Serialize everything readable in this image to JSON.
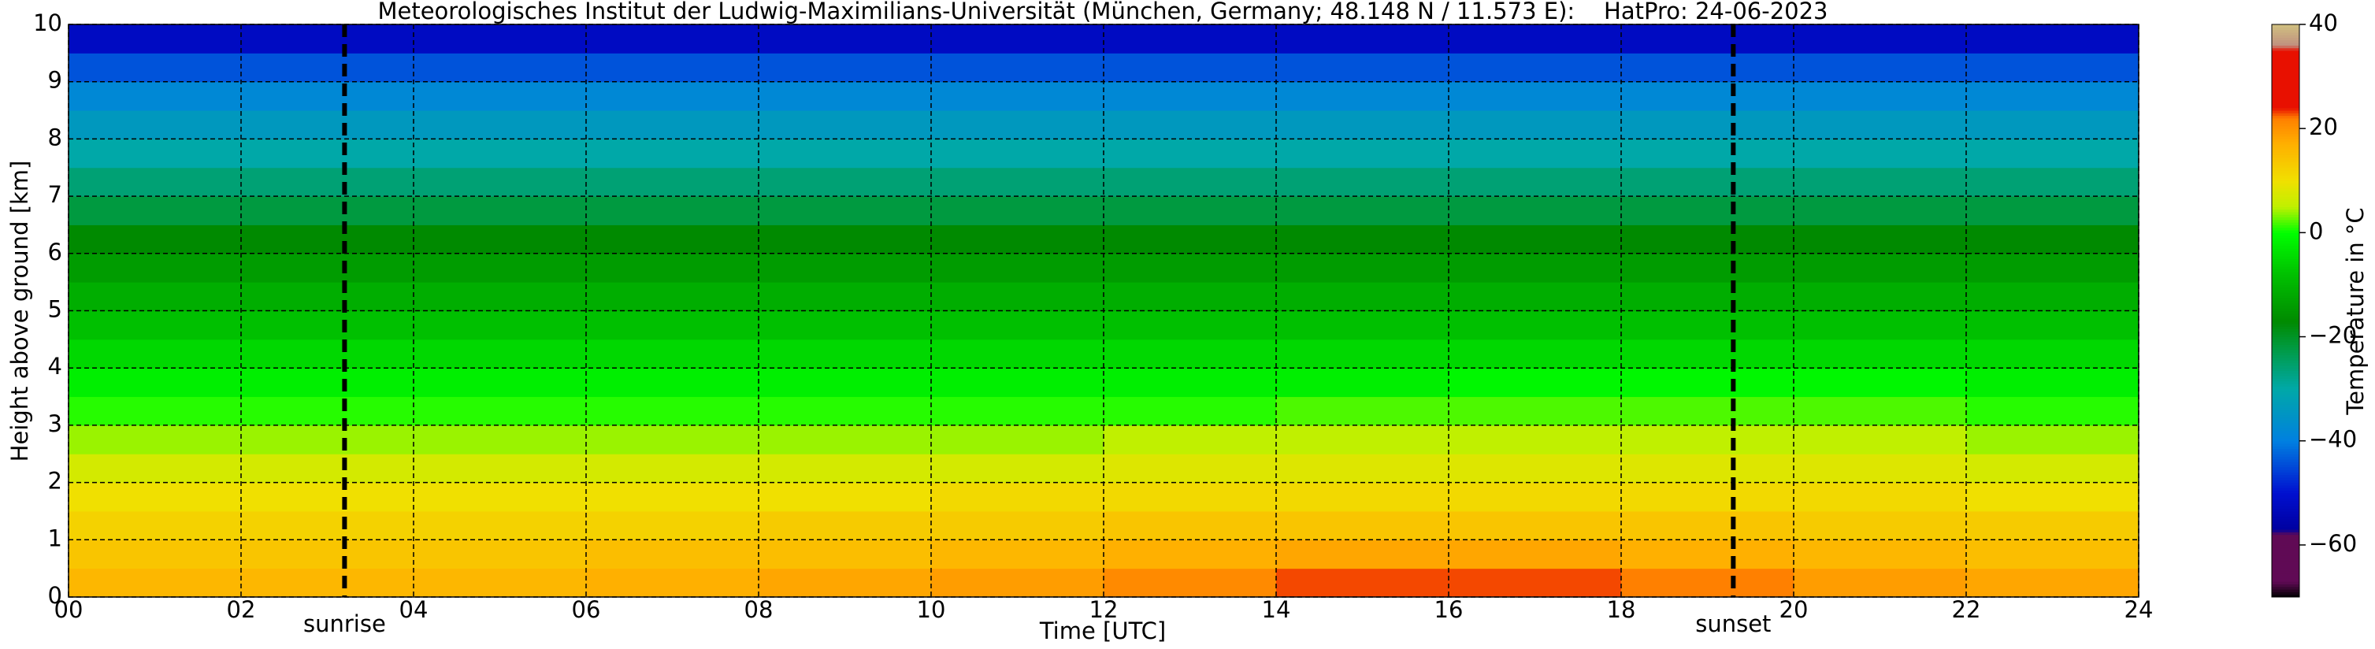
{
  "chart_data": {
    "type": "heatmap",
    "title": "Meteorologisches Institut der Ludwig-Maximilians-Universität (München, Germany; 48.148 N / 11.573 E):    HatPro: 24-06-2023",
    "x_label": "Time [UTC]",
    "y_label": "Height above ground [km]",
    "x": [
      0,
      2,
      4,
      6,
      8,
      10,
      12,
      14,
      16,
      18,
      20,
      22,
      24
    ],
    "y": [
      0,
      0.5,
      1,
      1.5,
      2,
      2.5,
      3,
      3.5,
      4,
      4.5,
      5,
      5.5,
      6,
      6.5,
      7,
      7.5,
      8,
      8.5,
      9,
      9.5,
      10
    ],
    "values": [
      [
        16,
        16,
        16,
        17,
        18,
        19,
        21,
        23,
        23,
        22,
        19,
        18
      ],
      [
        14,
        14,
        14,
        15,
        15,
        16,
        17,
        18,
        18,
        17,
        16,
        15
      ],
      [
        12,
        12,
        12,
        12,
        13,
        13,
        14,
        14,
        14,
        14,
        13,
        13
      ],
      [
        10,
        10,
        10,
        10,
        10,
        11,
        11,
        11,
        11,
        11,
        11,
        10
      ],
      [
        7,
        7,
        7,
        7,
        7,
        7,
        8,
        8,
        8,
        8,
        8,
        7
      ],
      [
        4,
        4,
        4,
        4,
        4,
        4,
        5,
        5,
        5,
        5,
        5,
        4
      ],
      [
        1,
        1,
        1,
        1,
        1,
        1,
        1,
        2,
        2,
        2,
        2,
        1
      ],
      [
        -2,
        -2,
        -2,
        -2,
        -2,
        -2,
        -2,
        -2,
        -1,
        -1,
        -1,
        -2
      ],
      [
        -5,
        -5,
        -5,
        -5,
        -5,
        -5,
        -5,
        -5,
        -5,
        -5,
        -5,
        -5
      ],
      [
        -8,
        -8,
        -8,
        -8,
        -8,
        -8,
        -8,
        -8,
        -8,
        -8,
        -8,
        -8
      ],
      [
        -11,
        -11,
        -11,
        -11,
        -11,
        -11,
        -11,
        -11,
        -11,
        -11,
        -11,
        -11
      ],
      [
        -14,
        -14,
        -14,
        -14,
        -14,
        -14,
        -14,
        -14,
        -14,
        -14,
        -14,
        -14
      ],
      [
        -17,
        -17,
        -17,
        -17,
        -17,
        -17,
        -17,
        -17,
        -17,
        -17,
        -17,
        -17
      ],
      [
        -22,
        -22,
        -22,
        -22,
        -22,
        -22,
        -22,
        -22,
        -22,
        -22,
        -22,
        -22
      ],
      [
        -26,
        -26,
        -26,
        -26,
        -26,
        -26,
        -26,
        -26,
        -26,
        -26,
        -26,
        -26
      ],
      [
        -30,
        -30,
        -30,
        -30,
        -30,
        -30,
        -30,
        -30,
        -30,
        -30,
        -30,
        -30
      ],
      [
        -34,
        -34,
        -34,
        -34,
        -34,
        -34,
        -34,
        -34,
        -34,
        -34,
        -34,
        -34
      ],
      [
        -38,
        -38,
        -38,
        -38,
        -38,
        -38,
        -38,
        -38,
        -38,
        -38,
        -38,
        -38
      ],
      [
        -44,
        -44,
        -44,
        -44,
        -44,
        -44,
        -44,
        -44,
        -44,
        -44,
        -44,
        -44
      ],
      [
        -52,
        -52,
        -52,
        -52,
        -52,
        -52,
        -52,
        -52,
        -52,
        -52,
        -52,
        -52
      ]
    ],
    "xlim": [
      0,
      24
    ],
    "ylim": [
      0,
      10
    ],
    "xticks": [
      {
        "value": 0,
        "label": "00"
      },
      {
        "value": 2,
        "label": "02"
      },
      {
        "value": 4,
        "label": "04"
      },
      {
        "value": 6,
        "label": "06"
      },
      {
        "value": 8,
        "label": "08"
      },
      {
        "value": 10,
        "label": "10"
      },
      {
        "value": 12,
        "label": "12"
      },
      {
        "value": 14,
        "label": "14"
      },
      {
        "value": 16,
        "label": "16"
      },
      {
        "value": 18,
        "label": "18"
      },
      {
        "value": 20,
        "label": "20"
      },
      {
        "value": 22,
        "label": "22"
      },
      {
        "value": 24,
        "label": "24"
      }
    ],
    "yticks": [
      0,
      1,
      2,
      3,
      4,
      5,
      6,
      7,
      8,
      9,
      10
    ],
    "grid": true,
    "annotations": [
      {
        "x": 3.2,
        "label": "sunrise"
      },
      {
        "x": 19.3,
        "label": "sunset"
      }
    ],
    "colorbar": {
      "label": "Temperature in °C",
      "lim": [
        -70,
        40
      ],
      "ticks": [
        {
          "value": -60,
          "label": "−60"
        },
        {
          "value": -40,
          "label": "−40"
        },
        {
          "value": -20,
          "label": "−20"
        },
        0,
        20,
        40
      ],
      "colormap": [
        [
          -70,
          "#000000"
        ],
        [
          -67,
          "#600a55"
        ],
        [
          -58,
          "#600a55"
        ],
        [
          -57,
          "#0000a0"
        ],
        [
          -50,
          "#0010d0"
        ],
        [
          -40,
          "#0080e0"
        ],
        [
          -30,
          "#00a8a8"
        ],
        [
          -22,
          "#009a40"
        ],
        [
          -17,
          "#008a00"
        ],
        [
          -8,
          "#00c000"
        ],
        [
          0,
          "#00ff00"
        ],
        [
          5,
          "#c0f000"
        ],
        [
          10,
          "#f0e000"
        ],
        [
          17,
          "#ffb000"
        ],
        [
          22,
          "#ff8000"
        ],
        [
          24,
          "#e81000"
        ],
        [
          35,
          "#e81000"
        ],
        [
          36,
          "#c09080"
        ],
        [
          40,
          "#d0c080"
        ]
      ]
    }
  }
}
